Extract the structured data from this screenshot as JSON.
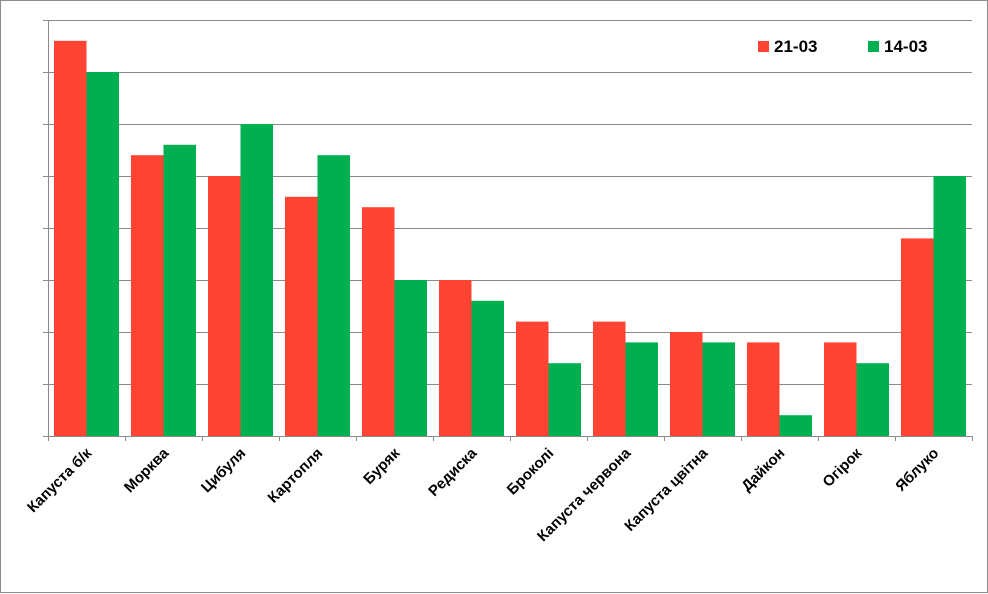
{
  "chart_data": {
    "type": "bar",
    "categories": [
      "Капуста б/к",
      "Морква",
      "Цибуля",
      "Картопля",
      "Буряк",
      "Редиска",
      "Броколі",
      "Капуста червона",
      "Капуста цвітна",
      "Дайкон",
      "Огірок",
      "Яблуко"
    ],
    "series": [
      {
        "name": "21-03",
        "color": "#ff4433",
        "values": [
          7.6,
          5.4,
          5.0,
          4.6,
          4.4,
          3.0,
          2.2,
          2.2,
          2.0,
          1.8,
          1.8,
          3.8
        ]
      },
      {
        "name": "14-03",
        "color": "#00b050",
        "values": [
          7.0,
          5.6,
          6.0,
          5.4,
          3.0,
          2.6,
          1.4,
          1.8,
          1.8,
          0.4,
          1.4,
          5.0
        ]
      }
    ],
    "ylim": [
      0,
      8
    ],
    "y_tick_step": 1,
    "grid": true,
    "legend": "top-right"
  }
}
